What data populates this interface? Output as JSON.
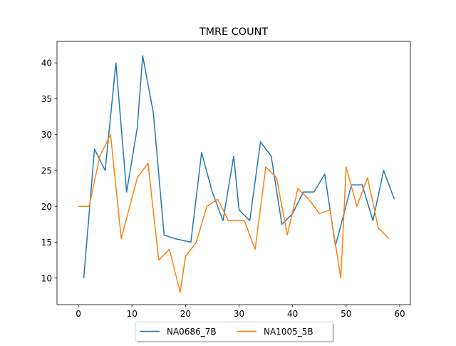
{
  "chart_data": {
    "type": "line",
    "title": "TMRE COUNT",
    "xlabel": "",
    "ylabel": "",
    "xlim": [
      -4,
      62
    ],
    "ylim": [
      6.3,
      43.0
    ],
    "xticks": [
      0,
      10,
      20,
      30,
      40,
      50,
      60
    ],
    "yticks": [
      10,
      15,
      20,
      25,
      30,
      35,
      40
    ],
    "grid": false,
    "legend_position": "bottom-center",
    "series": [
      {
        "name": "NA0686_7B",
        "color": "#1f77b4",
        "x": [
          1,
          3,
          5,
          7,
          9,
          11,
          12,
          14,
          16,
          18,
          21,
          23,
          25,
          27,
          29,
          30,
          32,
          34,
          36,
          38,
          40,
          42,
          44,
          46,
          48,
          51,
          53,
          55,
          57,
          59
        ],
        "y": [
          10,
          28,
          25,
          40,
          22,
          31,
          41,
          33,
          16,
          15.5,
          15,
          27.5,
          22,
          18,
          27,
          19.5,
          18,
          29,
          27,
          17.5,
          19,
          22,
          22,
          24.5,
          14.5,
          23,
          23,
          18,
          25,
          21
        ]
      },
      {
        "name": "NA1005_5B",
        "color": "#ff7f0e",
        "x": [
          0,
          2,
          4,
          6,
          8,
          11,
          13,
          15,
          17,
          19,
          20,
          22,
          24,
          26,
          28,
          29,
          31,
          33,
          35,
          37,
          39,
          41,
          43,
          45,
          47,
          49,
          50,
          52,
          54,
          56,
          58
        ],
        "y": [
          20,
          20,
          27,
          30,
          15.5,
          24,
          26,
          12.5,
          14,
          8,
          13,
          15,
          20,
          21,
          18,
          18,
          18,
          14,
          25.5,
          24,
          16,
          22.5,
          21,
          19,
          19.5,
          10,
          25.5,
          20,
          24,
          17,
          15.5
        ]
      }
    ]
  }
}
